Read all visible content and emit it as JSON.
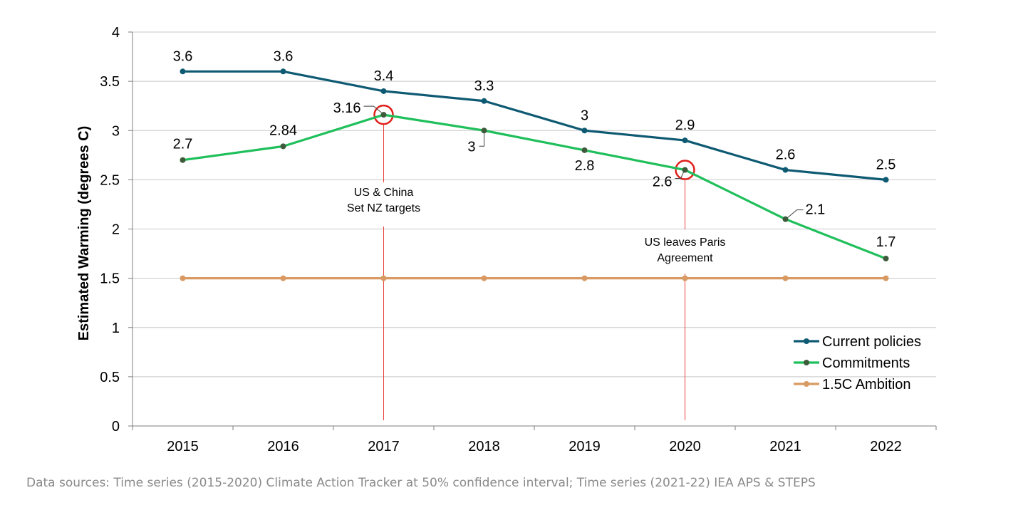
{
  "chart_data": {
    "type": "line",
    "title": "",
    "xlabel": "",
    "ylabel": "Estimated Warming (degrees C)",
    "categories": [
      "2015",
      "2016",
      "2017",
      "2018",
      "2019",
      "2020",
      "2021",
      "2022"
    ],
    "ylim": [
      0,
      4
    ],
    "yticks": [
      "0",
      "0.5",
      "1",
      "1.5",
      "2",
      "2.5",
      "3",
      "3.5",
      "4"
    ],
    "grid": "horizontal",
    "legend_position": "bottom-right",
    "series": [
      {
        "name": "Current policies",
        "color": "#0e5a73",
        "values": [
          3.6,
          3.6,
          3.4,
          3.3,
          3.0,
          2.9,
          2.6,
          2.5
        ],
        "labels": [
          "3.6",
          "3.6",
          "3.4",
          "3.3",
          "3",
          "2.9",
          "2.6",
          "2.5"
        ]
      },
      {
        "name": "Commitments",
        "color": "#1fbf5b",
        "marker_color": "#3d5a3a",
        "values": [
          2.7,
          2.84,
          3.16,
          3.0,
          2.8,
          2.6,
          2.1,
          1.7
        ],
        "labels": [
          "2.7",
          "2.84",
          "3.16",
          "3",
          "2.8",
          "2.6",
          "2.1",
          "1.7"
        ]
      },
      {
        "name": "1.5C Ambition",
        "color": "#d89a62",
        "values": [
          1.5,
          1.5,
          1.5,
          1.5,
          1.5,
          1.5,
          1.5,
          1.5
        ],
        "labels": []
      }
    ],
    "annotations": [
      {
        "category": "2017",
        "lines": [
          "US & China",
          "Set NZ targets"
        ],
        "color": "#e8413c"
      },
      {
        "category": "2020",
        "lines": [
          "US leaves Paris",
          "Agreement"
        ],
        "color": "#e8413c"
      }
    ]
  },
  "source_note": "Data sources: Time series (2015-2020) Climate Action Tracker at 50% confidence interval; Time series (2021-22) IEA APS & STEPS"
}
